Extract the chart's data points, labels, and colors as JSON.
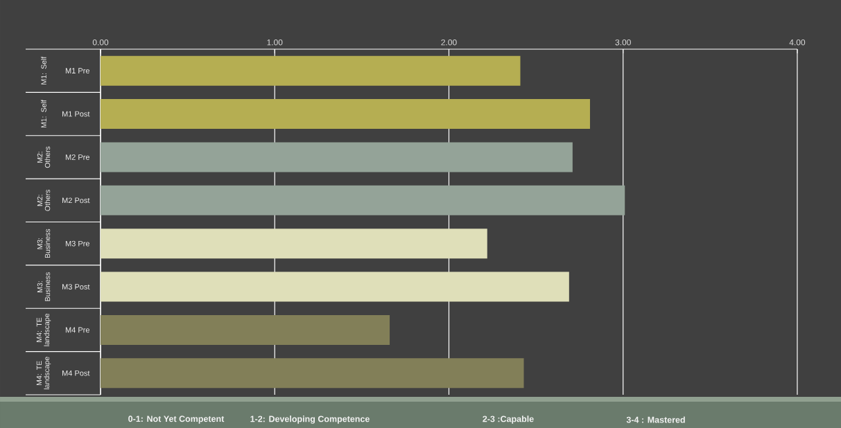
{
  "chart_data": {
    "type": "bar",
    "orientation": "horizontal",
    "categories": [
      "M1 Pre",
      "M1 Post",
      "M2 Pre",
      "M2 Post",
      "M3 Pre",
      "M3 Post",
      "M4 Pre",
      "M4 Post"
    ],
    "values": [
      2.41,
      2.81,
      2.71,
      3.01,
      2.22,
      2.69,
      1.66,
      2.43
    ],
    "colors": [
      "#b5ae52",
      "#b5ae52",
      "#94a398",
      "#94a398",
      "#dfdfb9",
      "#dfdfb9",
      "#827f58",
      "#827f58"
    ],
    "xlim": [
      0,
      4
    ],
    "xticks": [
      {
        "value": 0,
        "label": "0.00"
      },
      {
        "value": 1,
        "label": "1.00"
      },
      {
        "value": 2,
        "label": "2.00"
      },
      {
        "value": 3,
        "label": "3.00"
      },
      {
        "value": 4,
        "label": "4.00"
      }
    ],
    "grid": "x",
    "annotations": [
      "M1: Self",
      "M1: Self",
      "M2: Others",
      "M2: Others",
      "M3: Business",
      "M3: Business",
      "M4: TE landscape",
      "M4: TE landscape",
      "0-1: Not Yet Competent",
      "1-2: Developing Competence",
      "2-3 :Capable",
      "3-4 : Mastered"
    ]
  }
}
